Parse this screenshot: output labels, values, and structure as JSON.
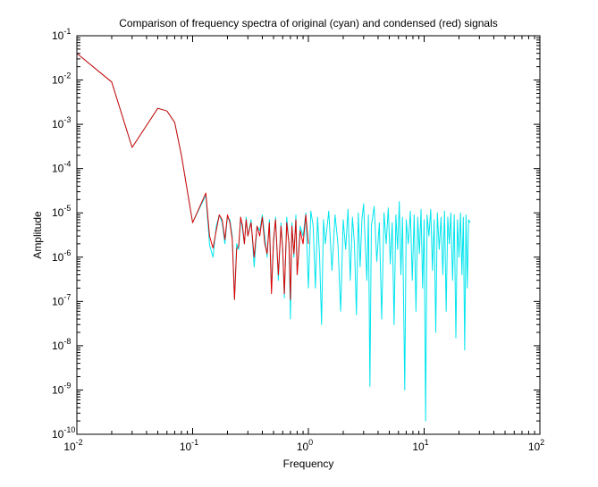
{
  "chart_data": {
    "type": "line",
    "title": "Comparison of frequency spectra of original (cyan) and condensed (red) signals",
    "xlabel": "Frequency",
    "ylabel": "Amplitude",
    "xscale": "log",
    "yscale": "log",
    "xlim": [
      0.01,
      100
    ],
    "ylim": [
      1e-10,
      0.1
    ],
    "grid": false,
    "legend": "none",
    "x_ticks": [
      {
        "value": 0.01,
        "base": "10",
        "exp": "-2"
      },
      {
        "value": 0.1,
        "base": "10",
        "exp": "-1"
      },
      {
        "value": 1,
        "base": "10",
        "exp": "0"
      },
      {
        "value": 10,
        "base": "10",
        "exp": "1"
      },
      {
        "value": 100,
        "base": "10",
        "exp": "2"
      }
    ],
    "y_ticks": [
      {
        "value": 1e-10,
        "base": "10",
        "exp": "-10"
      },
      {
        "value": 1e-09,
        "base": "10",
        "exp": "-9"
      },
      {
        "value": 1e-08,
        "base": "10",
        "exp": "-8"
      },
      {
        "value": 1e-07,
        "base": "10",
        "exp": "-7"
      },
      {
        "value": 1e-06,
        "base": "10",
        "exp": "-6"
      },
      {
        "value": 1e-05,
        "base": "10",
        "exp": "-5"
      },
      {
        "value": 0.0001,
        "base": "10",
        "exp": "-4"
      },
      {
        "value": 0.001,
        "base": "10",
        "exp": "-3"
      },
      {
        "value": 0.01,
        "base": "10",
        "exp": "-2"
      },
      {
        "value": 0.1,
        "base": "10",
        "exp": "-1"
      }
    ],
    "series": [
      {
        "color": "#00e5ee",
        "points": [
          [
            0.01,
            0.04
          ],
          [
            0.02,
            0.009
          ],
          [
            0.03,
            0.0003
          ],
          [
            0.05,
            0.0023
          ],
          [
            0.06,
            0.002
          ],
          [
            0.07,
            0.0011
          ],
          [
            0.08,
            0.0002
          ],
          [
            0.1,
            6e-06
          ],
          [
            0.13,
            2.5e-05
          ],
          [
            0.14,
            1.9e-06
          ],
          [
            0.15,
            1e-06
          ],
          [
            0.16,
            5e-06
          ],
          [
            0.17,
            9e-06
          ],
          [
            0.18,
            6e-06
          ],
          [
            0.19,
            2e-06
          ],
          [
            0.2,
            8e-06
          ],
          [
            0.21,
            7e-06
          ],
          [
            0.22,
            3e-06
          ],
          [
            0.23,
            1.1e-07
          ],
          [
            0.24,
            2e-06
          ],
          [
            0.25,
            1.5e-06
          ],
          [
            0.26,
            8e-06
          ],
          [
            0.27,
            4e-06
          ],
          [
            0.28,
            2e-06
          ],
          [
            0.29,
            8e-06
          ],
          [
            0.3,
            3e-06
          ],
          [
            0.32,
            7e-06
          ],
          [
            0.34,
            6e-07
          ],
          [
            0.36,
            5e-06
          ],
          [
            0.38,
            4e-06
          ],
          [
            0.4,
            9e-06
          ],
          [
            0.42,
            3e-06
          ],
          [
            0.44,
            1e-06
          ],
          [
            0.46,
            7e-06
          ],
          [
            0.48,
            2e-07
          ],
          [
            0.5,
            2e-06
          ],
          [
            0.52,
            8e-06
          ],
          [
            0.55,
            3e-07
          ],
          [
            0.58,
            6e-06
          ],
          [
            0.6,
            1.5e-06
          ],
          [
            0.62,
            1.2e-07
          ],
          [
            0.65,
            8e-06
          ],
          [
            0.68,
            2e-06
          ],
          [
            0.7,
            4e-08
          ],
          [
            0.72,
            6e-06
          ],
          [
            0.75,
            1e-06
          ],
          [
            0.78,
            9e-06
          ],
          [
            0.8,
            4e-07
          ],
          [
            0.85,
            5e-06
          ],
          [
            0.9,
            3e-06
          ],
          [
            0.95,
            1e-05
          ],
          [
            1.0,
            2e-07
          ],
          [
            1.05,
            1.1e-05
          ],
          [
            1.1,
            5e-06
          ],
          [
            1.15,
            2e-07
          ],
          [
            1.2,
            8e-06
          ],
          [
            1.25,
            1e-06
          ],
          [
            1.3,
            3e-08
          ],
          [
            1.35,
            7e-06
          ],
          [
            1.4,
            2e-06
          ],
          [
            1.5,
            1.1e-05
          ],
          [
            1.6,
            5e-07
          ],
          [
            1.7,
            9e-06
          ],
          [
            1.8,
            2e-06
          ],
          [
            1.9,
            6e-08
          ],
          [
            2.0,
            7e-06
          ],
          [
            2.1,
            1.5e-06
          ],
          [
            2.2,
            1.2e-05
          ],
          [
            2.3,
            3e-07
          ],
          [
            2.4,
            8e-06
          ],
          [
            2.5,
            2e-06
          ],
          [
            2.6,
            5e-08
          ],
          [
            2.7,
            1e-05
          ],
          [
            2.8,
            6e-07
          ],
          [
            2.9,
            7e-06
          ],
          [
            3.0,
            1.6e-05
          ],
          [
            3.1,
            2e-06
          ],
          [
            3.2,
            3e-07
          ],
          [
            3.3,
            9e-06
          ],
          [
            3.4,
            1.2e-09
          ],
          [
            3.5,
            5e-06
          ],
          [
            3.7,
            1.4e-05
          ],
          [
            3.9,
            8e-07
          ],
          [
            4.1,
            6e-06
          ],
          [
            4.3,
            4e-08
          ],
          [
            4.5,
            1e-05
          ],
          [
            4.7,
            2e-06
          ],
          [
            4.9,
            1.3e-05
          ],
          [
            5.1,
            7e-07
          ],
          [
            5.3,
            6e-06
          ],
          [
            5.5,
            3e-08
          ],
          [
            5.7,
            9e-06
          ],
          [
            5.9,
            1.5e-06
          ],
          [
            6.1,
            1.8e-05
          ],
          [
            6.3,
            4e-07
          ],
          [
            6.5,
            8e-06
          ],
          [
            6.8,
            1e-09
          ],
          [
            7.0,
            7e-06
          ],
          [
            7.3,
            2e-06
          ],
          [
            7.6,
            1.1e-05
          ],
          [
            7.9,
            3e-07
          ],
          [
            8.2,
            9e-06
          ],
          [
            8.5,
            6e-08
          ],
          [
            8.8,
            8e-06
          ],
          [
            9.1,
            1.2e-06
          ],
          [
            9.4,
            1.2e-05
          ],
          [
            9.7,
            2e-07
          ],
          [
            10.0,
            7e-06
          ],
          [
            10.3,
            2e-10
          ],
          [
            10.6,
            9e-06
          ],
          [
            11.0,
            3e-06
          ],
          [
            11.4,
            1.2e-05
          ],
          [
            11.8,
            5e-07
          ],
          [
            12.2,
            7e-06
          ],
          [
            12.6,
            2e-08
          ],
          [
            13.0,
            1e-05
          ],
          [
            13.5,
            1.5e-06
          ],
          [
            14.0,
            8e-06
          ],
          [
            14.5,
            4e-07
          ],
          [
            15.0,
            1.1e-05
          ],
          [
            15.5,
            6e-08
          ],
          [
            16.0,
            8e-06
          ],
          [
            16.5,
            2e-06
          ],
          [
            17.0,
            1e-05
          ],
          [
            17.6,
            3e-07
          ],
          [
            18.2,
            9e-06
          ],
          [
            18.8,
            1.5e-08
          ],
          [
            19.4,
            7e-06
          ],
          [
            20.0,
            1e-06
          ],
          [
            20.6,
            1e-05
          ],
          [
            21.2,
            4e-07
          ],
          [
            21.8,
            8e-06
          ],
          [
            22.4,
            8e-09
          ],
          [
            23.0,
            9e-06
          ],
          [
            23.6,
            2e-07
          ],
          [
            24.2,
            7e-06
          ],
          [
            25.0,
            6e-06
          ]
        ]
      },
      {
        "color": "#e00000",
        "points": [
          [
            0.01,
            0.04
          ],
          [
            0.02,
            0.009
          ],
          [
            0.03,
            0.0003
          ],
          [
            0.05,
            0.0023
          ],
          [
            0.06,
            0.002
          ],
          [
            0.07,
            0.0011
          ],
          [
            0.08,
            0.0002
          ],
          [
            0.1,
            6e-06
          ],
          [
            0.13,
            2.8e-05
          ],
          [
            0.14,
            3e-06
          ],
          [
            0.15,
            1.6e-06
          ],
          [
            0.16,
            4e-06
          ],
          [
            0.17,
            9e-06
          ],
          [
            0.18,
            7e-06
          ],
          [
            0.19,
            2.5e-06
          ],
          [
            0.2,
            9e-06
          ],
          [
            0.21,
            6e-06
          ],
          [
            0.22,
            2.5e-06
          ],
          [
            0.23,
            1.1e-07
          ],
          [
            0.24,
            1.5e-06
          ],
          [
            0.25,
            1.8e-06
          ],
          [
            0.26,
            8e-06
          ],
          [
            0.27,
            5e-06
          ],
          [
            0.28,
            2e-06
          ],
          [
            0.29,
            7e-06
          ],
          [
            0.3,
            3e-06
          ],
          [
            0.32,
            6e-06
          ],
          [
            0.34,
            1e-06
          ],
          [
            0.36,
            5e-06
          ],
          [
            0.38,
            3e-06
          ],
          [
            0.4,
            8e-06
          ],
          [
            0.42,
            2e-06
          ],
          [
            0.44,
            1.2e-06
          ],
          [
            0.46,
            6e-06
          ],
          [
            0.48,
            1.5e-07
          ],
          [
            0.5,
            2.5e-06
          ],
          [
            0.52,
            7e-06
          ],
          [
            0.55,
            4e-07
          ],
          [
            0.58,
            5e-06
          ],
          [
            0.6,
            1.5e-06
          ],
          [
            0.62,
            1.5e-07
          ],
          [
            0.65,
            6e-06
          ],
          [
            0.68,
            2e-06
          ],
          [
            0.7,
            1.1e-07
          ],
          [
            0.72,
            5e-06
          ],
          [
            0.75,
            1.2e-06
          ],
          [
            0.78,
            7e-06
          ],
          [
            0.8,
            4e-07
          ],
          [
            0.85,
            4e-06
          ],
          [
            0.9,
            2e-06
          ],
          [
            0.95,
            9e-06
          ],
          [
            1.0,
            2e-06
          ]
        ]
      }
    ]
  }
}
